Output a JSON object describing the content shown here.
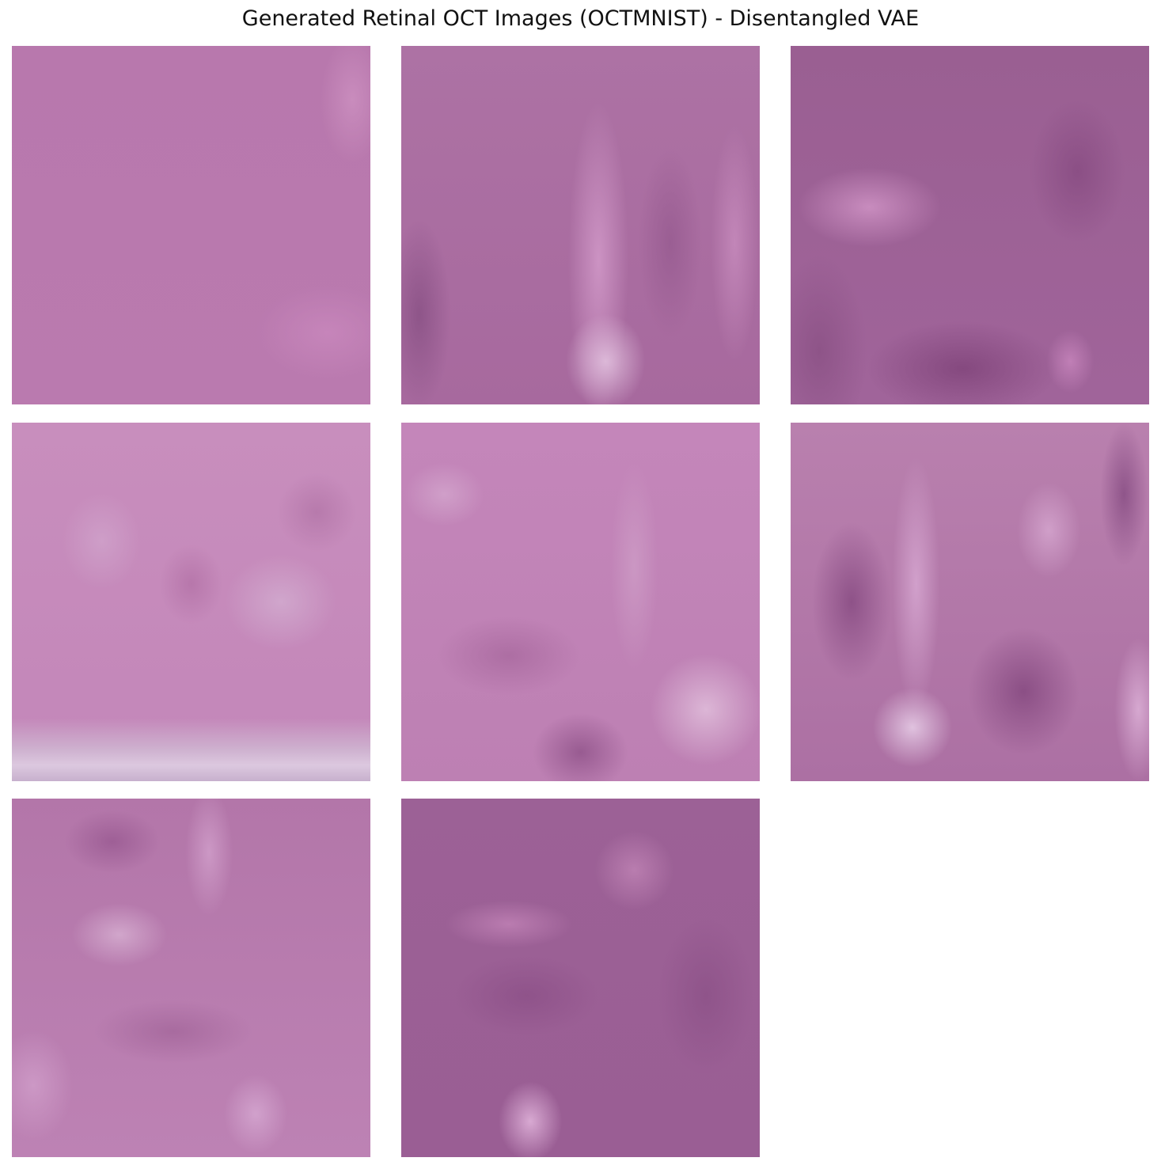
{
  "title": "Generated Retinal OCT Images (OCTMNIST) - Disentangled VAE"
}
